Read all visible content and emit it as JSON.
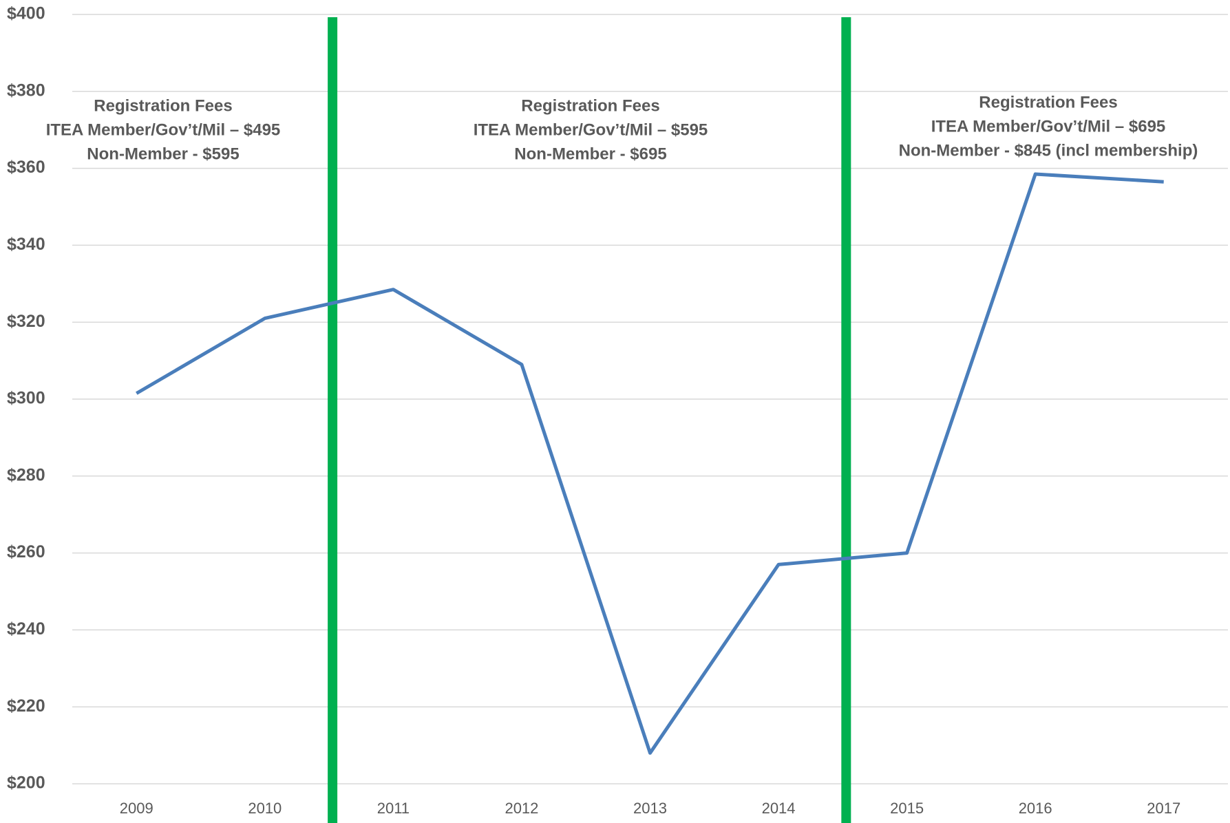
{
  "chart_data": {
    "type": "line",
    "categories": [
      "2009",
      "2010",
      "2011",
      "2012",
      "2013",
      "2014",
      "2015",
      "2016",
      "2017"
    ],
    "series": [
      {
        "color": "#4a7ebb",
        "values": [
          301.5,
          321,
          328.5,
          309,
          208,
          257,
          260,
          358.5,
          356.5
        ]
      }
    ],
    "ylim": [
      200,
      400
    ],
    "yticks": [
      {
        "value": 200,
        "label": "$200"
      },
      {
        "value": 220,
        "label": "$220"
      },
      {
        "value": 240,
        "label": "$240"
      },
      {
        "value": 260,
        "label": "$260"
      },
      {
        "value": 280,
        "label": "$280"
      },
      {
        "value": 300,
        "label": "$300"
      },
      {
        "value": 320,
        "label": "$320"
      },
      {
        "value": 340,
        "label": "$340"
      },
      {
        "value": 360,
        "label": "$360"
      },
      {
        "value": 380,
        "label": "$380"
      },
      {
        "value": 400,
        "label": "$400"
      }
    ],
    "grid": true,
    "divider_color": "#00b050",
    "annotations": [
      {
        "lines": [
          "Registration Fees",
          "ITEA Member/Gov’t/Mil – $495",
          "Non-Member - $595"
        ]
      },
      {
        "lines": [
          "Registration Fees",
          "ITEA Member/Gov’t/Mil – $595",
          "Non-Member - $695"
        ]
      },
      {
        "lines": [
          "Registration Fees",
          "ITEA Member/Gov’t/Mil – $695",
          "Non-Member - $845 (incl membership)"
        ]
      }
    ]
  }
}
